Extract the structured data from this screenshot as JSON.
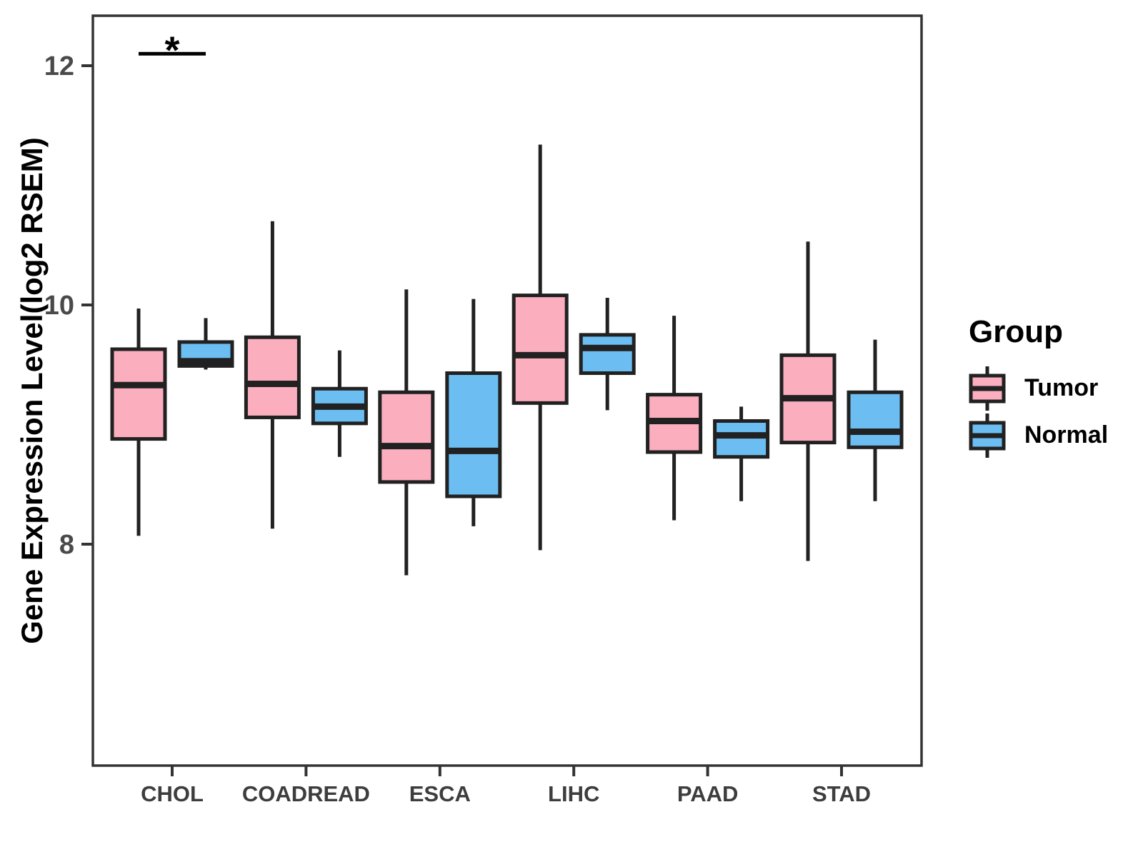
{
  "figure": {
    "y_axis": {
      "title": "Gene Expression Level(log2 RSEM)",
      "tick_labels": [
        "12",
        "10",
        "8"
      ]
    },
    "x_axis": {
      "tick_labels": [
        "CHOL",
        "COADREAD",
        "ESCA",
        "LIHC",
        "PAAD",
        "STAD"
      ]
    },
    "legend": {
      "title": "Group",
      "entries": [
        {
          "label": "Tumor",
          "color": "#FAAEBE"
        },
        {
          "label": "Normal",
          "color": "#6CBEF2"
        }
      ]
    }
  },
  "chart_data": {
    "type": "boxplot",
    "title": "",
    "ylabel": "Gene Expression Level(log2 RSEM)",
    "xlabel": "",
    "categories": [
      "CHOL",
      "COADREAD",
      "ESCA",
      "LIHC",
      "PAAD",
      "STAD"
    ],
    "groups": [
      "Tumor",
      "Normal"
    ],
    "ylim": [
      6.15,
      12.42
    ],
    "yticks": [
      12,
      10,
      8
    ],
    "grid": false,
    "legend_position": "right",
    "series": [
      {
        "name": "Tumor",
        "color": "#FAAEBE",
        "boxes": [
          {
            "category": "CHOL",
            "low": 8.07,
            "q1": 8.88,
            "median": 9.33,
            "q3": 9.63,
            "high": 9.97
          },
          {
            "category": "COADREAD",
            "low": 8.13,
            "q1": 9.06,
            "median": 9.34,
            "q3": 9.73,
            "high": 10.7
          },
          {
            "category": "ESCA",
            "low": 7.74,
            "q1": 8.52,
            "median": 8.82,
            "q3": 9.27,
            "high": 10.13
          },
          {
            "category": "LIHC",
            "low": 7.95,
            "q1": 9.18,
            "median": 9.58,
            "q3": 10.08,
            "high": 11.34
          },
          {
            "category": "PAAD",
            "low": 8.2,
            "q1": 8.77,
            "median": 9.03,
            "q3": 9.25,
            "high": 9.91
          },
          {
            "category": "STAD",
            "low": 7.86,
            "q1": 8.85,
            "median": 9.22,
            "q3": 9.58,
            "high": 10.53
          }
        ]
      },
      {
        "name": "Normal",
        "color": "#6CBEF2",
        "boxes": [
          {
            "category": "CHOL",
            "low": 9.46,
            "q1": 9.49,
            "median": 9.53,
            "q3": 9.69,
            "high": 9.89
          },
          {
            "category": "COADREAD",
            "low": 8.73,
            "q1": 9.01,
            "median": 9.15,
            "q3": 9.3,
            "high": 9.62
          },
          {
            "category": "ESCA",
            "low": 8.15,
            "q1": 8.4,
            "median": 8.78,
            "q3": 9.43,
            "high": 10.05
          },
          {
            "category": "LIHC",
            "low": 9.12,
            "q1": 9.43,
            "median": 9.64,
            "q3": 9.75,
            "high": 10.06
          },
          {
            "category": "PAAD",
            "low": 8.36,
            "q1": 8.73,
            "median": 8.91,
            "q3": 9.03,
            "high": 9.15
          },
          {
            "category": "STAD",
            "low": 8.36,
            "q1": 8.81,
            "median": 8.94,
            "q3": 9.27,
            "high": 9.71
          }
        ]
      }
    ],
    "annotations": [
      {
        "category": "CHOL",
        "text": "*",
        "y": 12.1
      }
    ],
    "style": {
      "line_color": "#212121",
      "panel_border_color": "#333333",
      "tick_color": "#333333",
      "tick_label_color": "#4A4A4A",
      "axis_label_color": "#3D3D3D",
      "annotation_color": "#000000",
      "background": "#FFFFFF"
    }
  }
}
